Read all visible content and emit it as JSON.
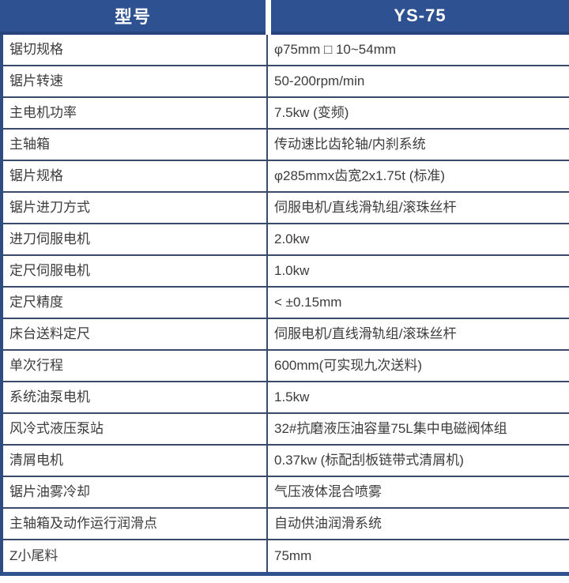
{
  "table": {
    "header": {
      "col1": "型号",
      "col2": "YS-75"
    },
    "rows": [
      {
        "label": "锯切规格",
        "value": "φ75mm □ 10~54mm"
      },
      {
        "label": "锯片转速",
        "value": "50-200rpm/min"
      },
      {
        "label": "主电机功率",
        "value": "7.5kw (变频)"
      },
      {
        "label": "主轴箱",
        "value": "传动速比齿轮轴/内刹系统"
      },
      {
        "label": "锯片规格",
        "value": "φ285mmx齿宽2x1.75t (标准)"
      },
      {
        "label": "锯片进刀方式",
        "value": "伺服电机/直线滑轨组/滚珠丝杆"
      },
      {
        "label": "进刀伺服电机",
        "value": "2.0kw"
      },
      {
        "label": "定尺伺服电机",
        "value": "1.0kw"
      },
      {
        "label": "定尺精度",
        "value": "< ±0.15mm"
      },
      {
        "label": "床台送料定尺",
        "value": "伺服电机/直线滑轨组/滚珠丝杆"
      },
      {
        "label": "单次行程",
        "value": "600mm(可实现九次送料)"
      },
      {
        "label": "系统油泵电机",
        "value": "1.5kw"
      },
      {
        "label": "风冷式液压泵站",
        "value": "32#抗磨液压油容量75L集中电磁阀体组"
      },
      {
        "label": "清屑电机",
        "value": "0.37kw (标配刮板链带式清屑机)"
      },
      {
        "label": "锯片油雾冷却",
        "value": "气压液体混合喷雾"
      },
      {
        "label": "主轴箱及动作运行润滑点",
        "value": "自动供油润滑系统"
      },
      {
        "label": "Z小尾料",
        "value": "75mm"
      }
    ]
  },
  "colors": {
    "header_bg": "#2e5191",
    "header_text": "#ffffff",
    "header_bottom_border": "#27457c",
    "row_separator": "#3a4a6b",
    "left_border": "#2c4c82",
    "bottom_border": "#2e538f",
    "body_text": "#3c3c3c"
  }
}
